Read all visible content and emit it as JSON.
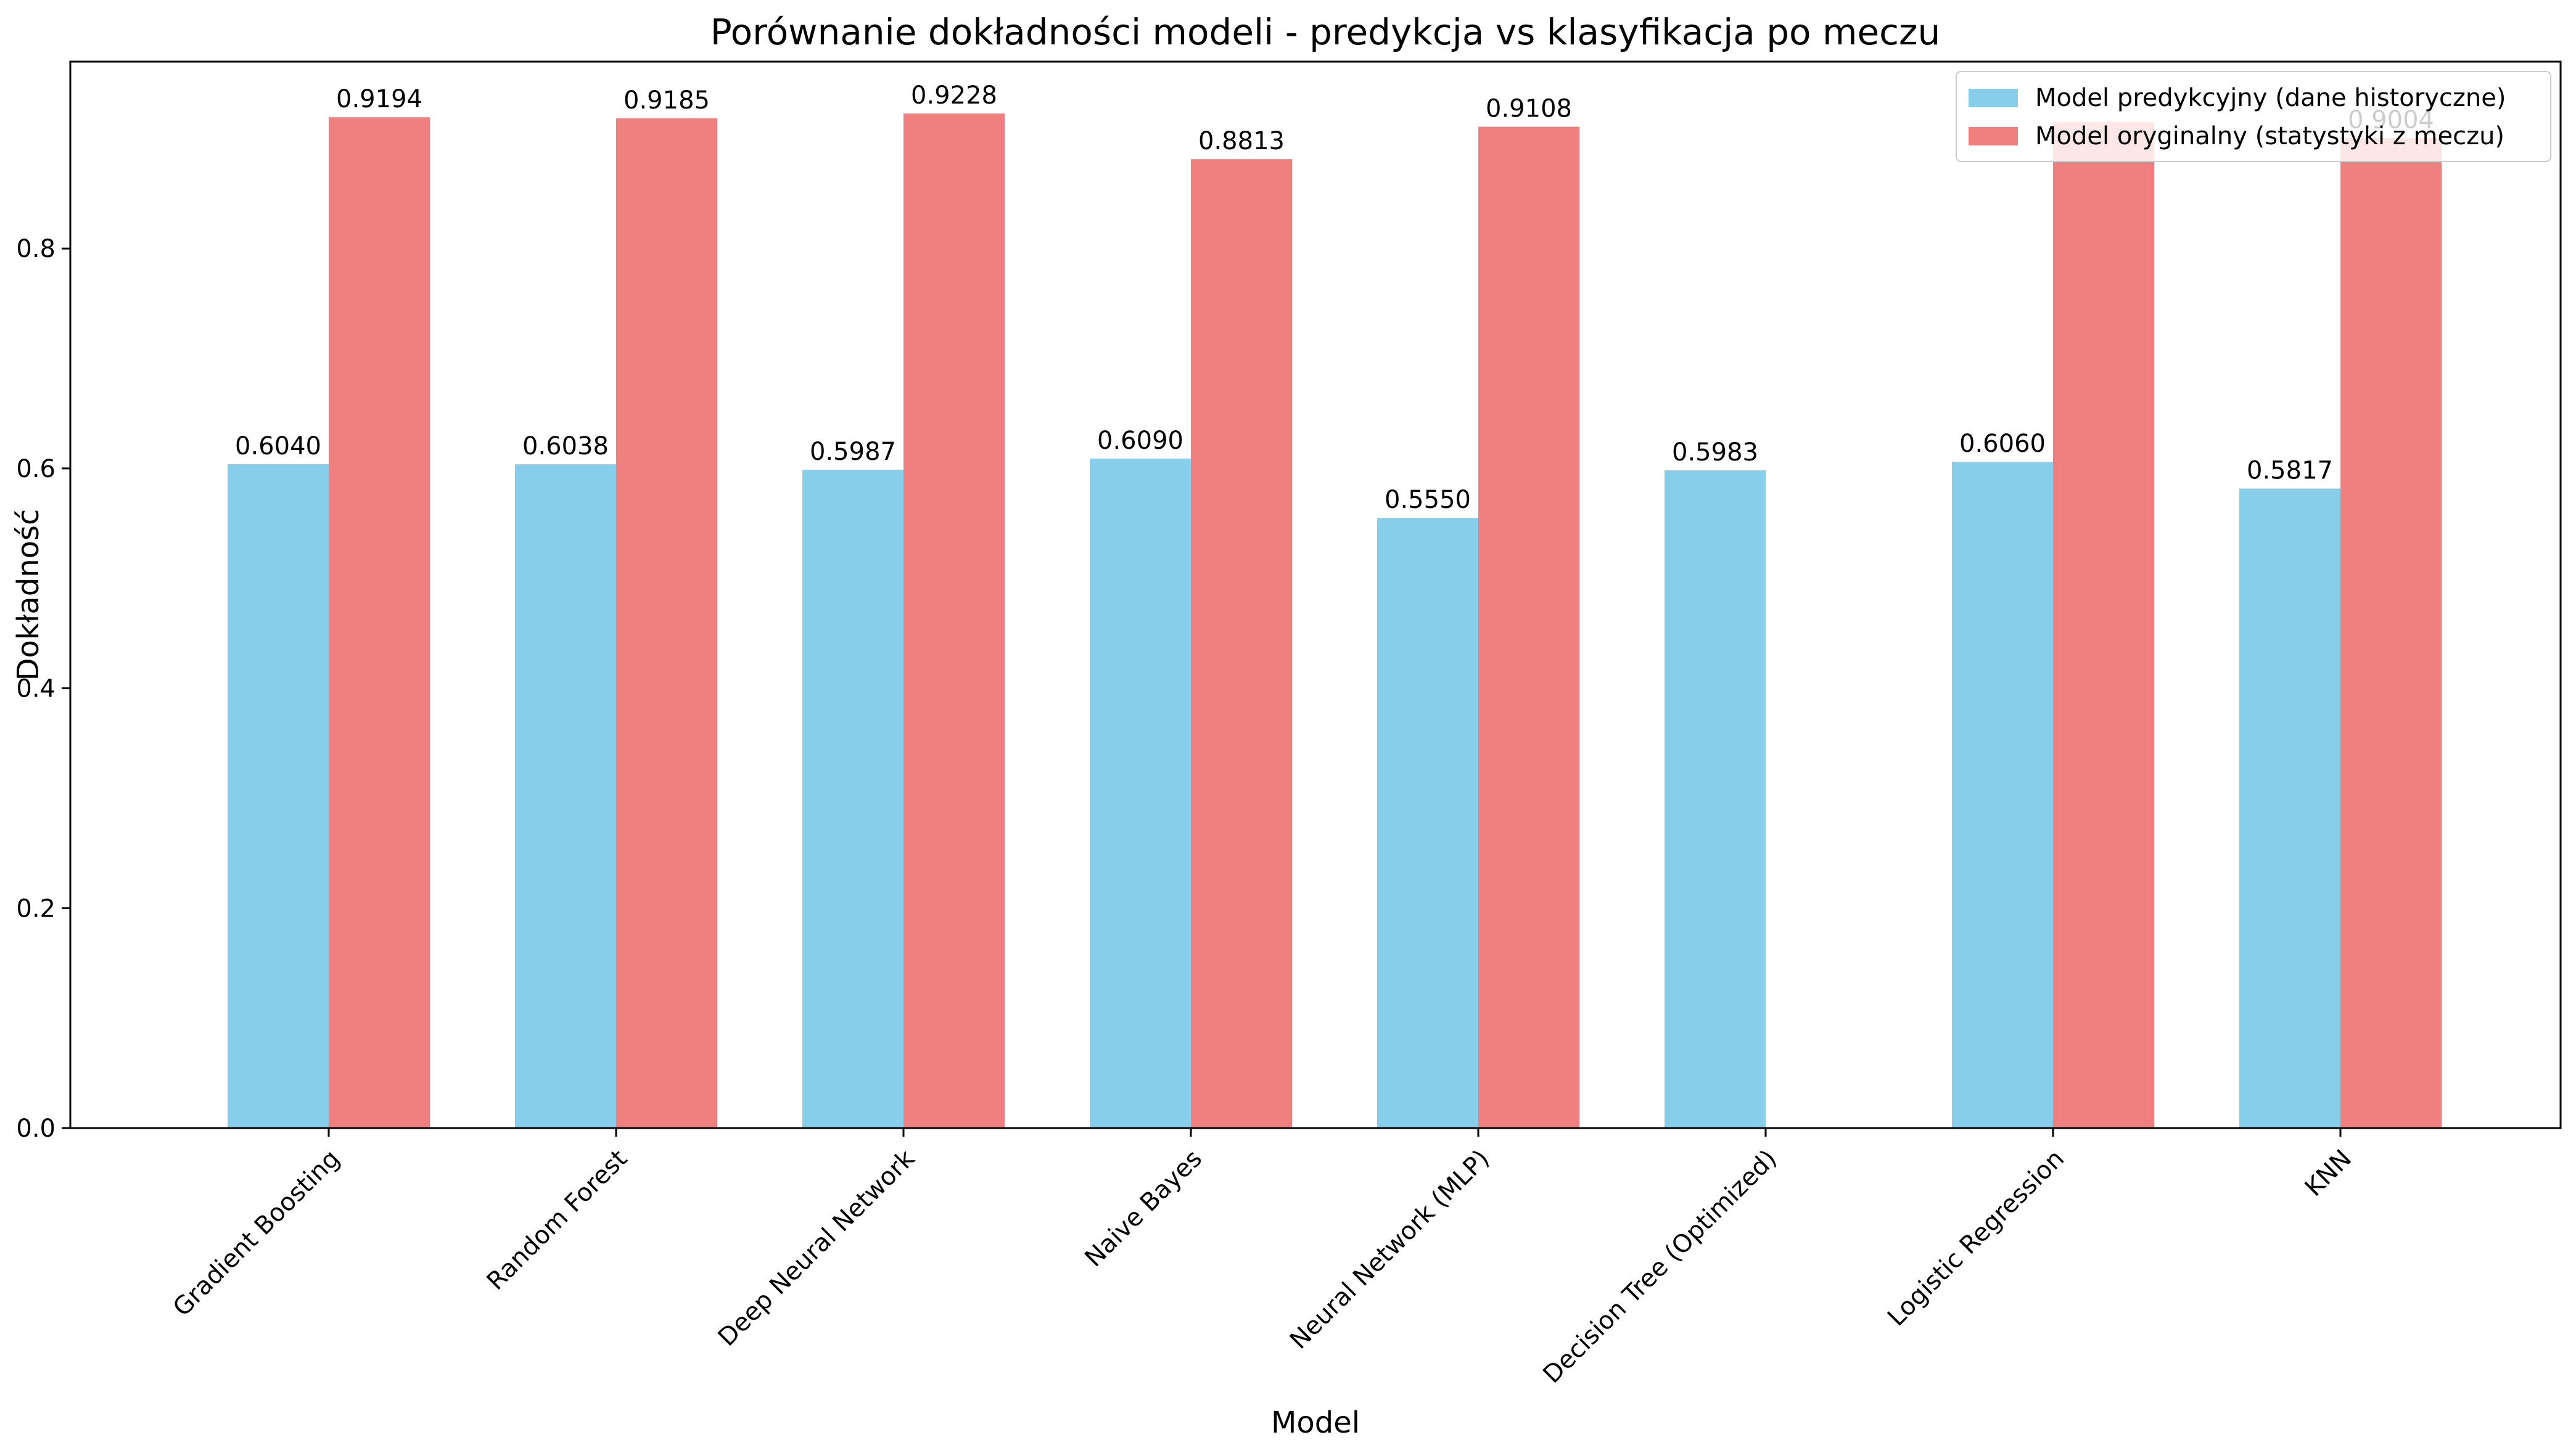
{
  "chart_data": {
    "type": "bar",
    "title": "Porównanie dokładności modeli - predykcja vs klasyfikacja po meczu",
    "xlabel": "Model",
    "ylabel": "Dokładność",
    "ylim": [
      0,
      0.97
    ],
    "yticks": [
      "0.0",
      "0.2",
      "0.4",
      "0.6",
      "0.8"
    ],
    "grid": false,
    "legend_position": "top-right",
    "categories": [
      "Gradient Boosting",
      "Random Forest",
      "Deep Neural Network",
      "Naive Bayes",
      "Neural Network (MLP)",
      "Decision Tree (Optimized)",
      "Logistic Regression",
      "KNN"
    ],
    "series": [
      {
        "name": "Model predykcyjny (dane historyczne)",
        "color": "#87ceeb",
        "values": [
          0.604,
          0.6038,
          0.5987,
          0.609,
          0.555,
          0.5983,
          0.606,
          0.5817
        ],
        "labels": [
          "0.6040",
          "0.6038",
          "0.5987",
          "0.6090",
          "0.5550",
          "0.5983",
          "0.6060",
          "0.5817"
        ]
      },
      {
        "name": "Model oryginalny (statystyki z meczu)",
        "color": "#f08080",
        "values": [
          0.9194,
          0.9185,
          0.9228,
          0.8813,
          0.9108,
          null,
          0.915,
          0.9004
        ],
        "labels": [
          "0.9194",
          "0.9185",
          "0.9228",
          "0.8813",
          "0.9108",
          "",
          "",
          "0.9004"
        ]
      }
    ]
  }
}
